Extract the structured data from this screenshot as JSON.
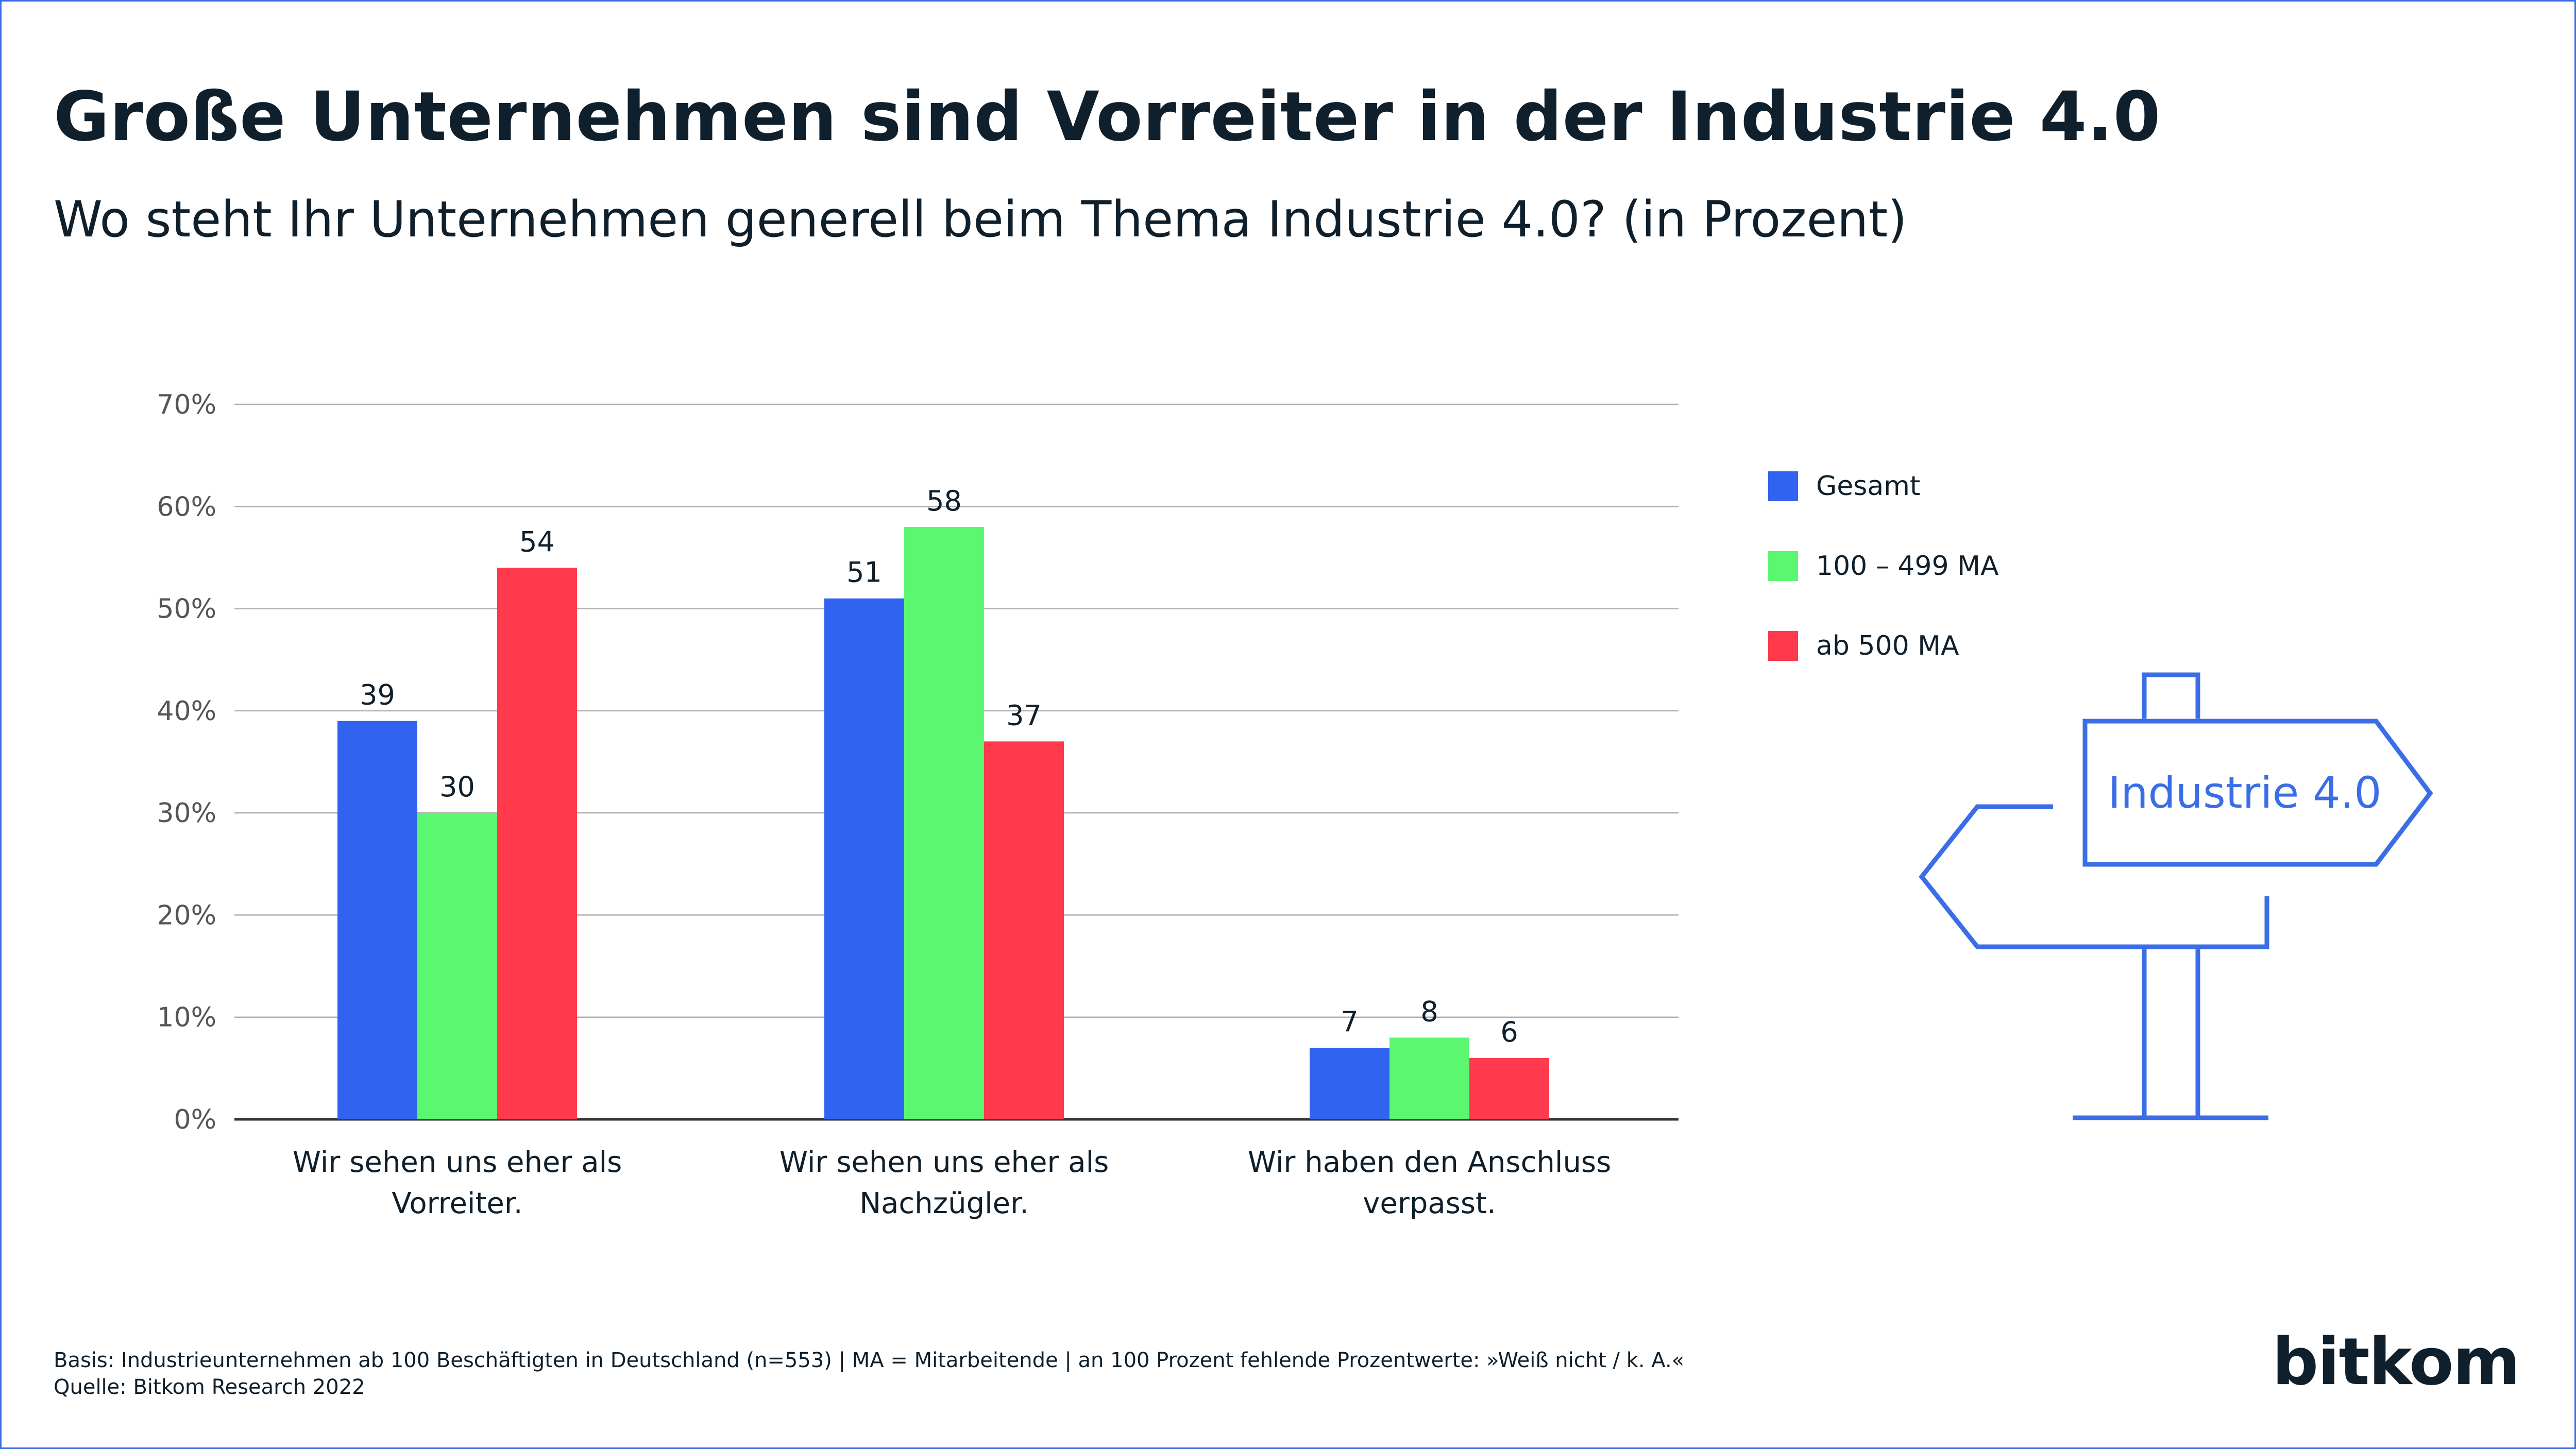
{
  "title": "Große Unternehmen sind Vorreiter in der Industrie 4.0",
  "subtitle": "Wo steht Ihr Unternehmen generell beim Thema Industrie 4.0? (in Prozent)",
  "footnote": {
    "basis": "Basis: Industrieunternehmen ab 100 Beschäftigten in Deutschland (n=553) | MA = Mitarbeitende | an 100 Prozent fehlende Prozentwerte: »Weiß nicht / k. A.«",
    "source": "Quelle: Bitkom Research 2022"
  },
  "brand": "bitkom",
  "signpost_label": "Industrie 4.0",
  "colors": {
    "accent": "#3b6ee6",
    "text": "#0f1f2b",
    "grid": "#b0b0b0"
  },
  "chart_data": {
    "type": "bar",
    "categories": [
      [
        "Wir sehen uns eher als",
        "Vorreiter."
      ],
      [
        "Wir sehen uns eher als",
        "Nachzügler."
      ],
      [
        "Wir haben den Anschluss",
        "verpasst."
      ]
    ],
    "series": [
      {
        "name": "Gesamt",
        "color": "#2f63f0",
        "values": [
          39,
          51,
          7
        ]
      },
      {
        "name": "100 – 499 MA",
        "color": "#5cf771",
        "values": [
          30,
          58,
          8
        ]
      },
      {
        "name": "ab 500 MA",
        "color": "#ff3a4c",
        "values": [
          54,
          37,
          6
        ]
      }
    ],
    "ylim": [
      0,
      70
    ],
    "yticks": [
      0,
      10,
      20,
      30,
      40,
      50,
      60,
      70
    ],
    "ytick_suffix": "%",
    "grid": true,
    "legend_position": "right"
  }
}
